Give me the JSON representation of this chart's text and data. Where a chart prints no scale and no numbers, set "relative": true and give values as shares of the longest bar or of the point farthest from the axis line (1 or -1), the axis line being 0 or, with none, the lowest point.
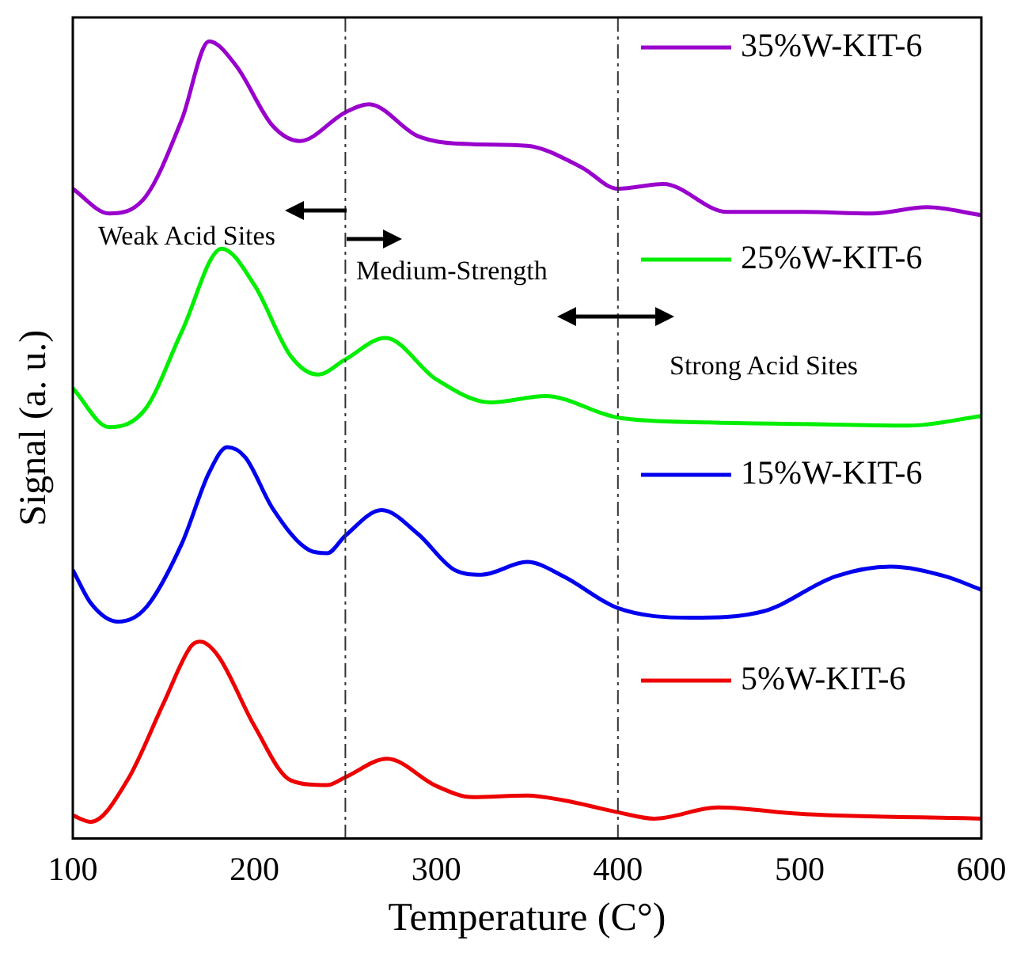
{
  "chart_data": {
    "type": "line",
    "xlabel": "Temperature (C°)",
    "ylabel": "Signal (a. u.)",
    "relative": true,
    "xlim": [
      100,
      600
    ],
    "xticks": [
      100,
      200,
      300,
      400,
      500,
      600
    ],
    "grid": false,
    "legend": "right",
    "marker": "none",
    "line_style": "solid",
    "series": [
      {
        "name": "35%W-KIT-6",
        "color": "#9900cc",
        "x": [
          100,
          120,
          140,
          160,
          175,
          190,
          210,
          225,
          250,
          263,
          290,
          320,
          350,
          380,
          400,
          425,
          460,
          500,
          540,
          570,
          600
        ],
        "values": [
          0.815,
          0.784,
          0.805,
          0.902,
          1.0,
          0.969,
          0.894,
          0.875,
          0.911,
          0.921,
          0.881,
          0.871,
          0.869,
          0.842,
          0.815,
          0.821,
          0.786,
          0.786,
          0.784,
          0.792,
          0.782
        ]
      },
      {
        "name": "25%W-KIT-6",
        "color": "#00ee00",
        "x": [
          100,
          120,
          140,
          160,
          182,
          200,
          220,
          235,
          250,
          272,
          300,
          330,
          360,
          400,
          450,
          500,
          560,
          600
        ],
        "values": [
          0.565,
          0.516,
          0.539,
          0.636,
          0.74,
          0.694,
          0.605,
          0.582,
          0.601,
          0.628,
          0.576,
          0.547,
          0.555,
          0.528,
          0.522,
          0.52,
          0.518,
          0.53
        ]
      },
      {
        "name": "15%W-KIT-6",
        "color": "#0000ee",
        "x": [
          100,
          110,
          125,
          140,
          160,
          175,
          185,
          195,
          210,
          230,
          240,
          250,
          270,
          290,
          310,
          325,
          350,
          370,
          400,
          440,
          480,
          520,
          550,
          580,
          600
        ],
        "values": [
          0.337,
          0.295,
          0.272,
          0.289,
          0.37,
          0.459,
          0.491,
          0.478,
          0.414,
          0.362,
          0.358,
          0.38,
          0.412,
          0.382,
          0.337,
          0.331,
          0.347,
          0.329,
          0.289,
          0.277,
          0.285,
          0.329,
          0.341,
          0.329,
          0.312
        ]
      },
      {
        "name": "5%W-KIT-6",
        "color": "#ee0000",
        "x": [
          100,
          110,
          130,
          150,
          165,
          170,
          180,
          200,
          220,
          240,
          250,
          273,
          300,
          320,
          350,
          370,
          400,
          420,
          455,
          500,
          600
        ],
        "values": [
          0.029,
          0.021,
          0.073,
          0.17,
          0.241,
          0.247,
          0.229,
          0.141,
          0.073,
          0.067,
          0.077,
          0.1,
          0.066,
          0.052,
          0.054,
          0.048,
          0.033,
          0.025,
          0.039,
          0.031,
          0.025
        ]
      }
    ],
    "ref_lines": [
      {
        "axis": "x",
        "value": 250,
        "line_style": "dashed",
        "color": "#333333"
      },
      {
        "axis": "x",
        "value": 400,
        "line_style": "dashed",
        "color": "#333333"
      }
    ],
    "annotations": [
      "Weak Acid Sites",
      "Medium-Strength",
      "Strong Acid Sites"
    ]
  }
}
